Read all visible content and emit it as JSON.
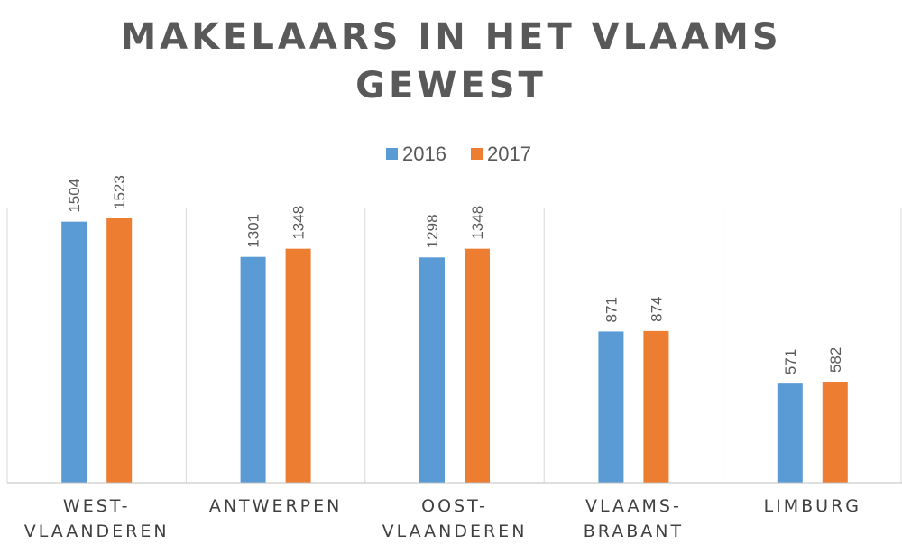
{
  "colors": {
    "2016": "#5B9BD5",
    "2017": "#ED7D31",
    "axis": "#BFBFBF",
    "grid": "#D9D9D9"
  },
  "chart_data": {
    "type": "bar",
    "title": [
      "MAKELAARS IN HET VLAAMS",
      "GEWEST"
    ],
    "categories": [
      [
        "WEST-",
        "VLAANDEREN"
      ],
      [
        "ANTWERPEN"
      ],
      [
        "OOST-",
        "VLAANDEREN"
      ],
      [
        "VLAAMS-",
        "BRABANT"
      ],
      [
        "LIMBURG"
      ]
    ],
    "series": [
      {
        "name": "2016",
        "values": [
          1504,
          1301,
          1298,
          871,
          571
        ]
      },
      {
        "name": "2017",
        "values": [
          1523,
          1348,
          1348,
          874,
          582
        ]
      }
    ],
    "ylim": [
      0,
      1600
    ],
    "legend_position": "top",
    "grid": "vertical-category-separators"
  }
}
